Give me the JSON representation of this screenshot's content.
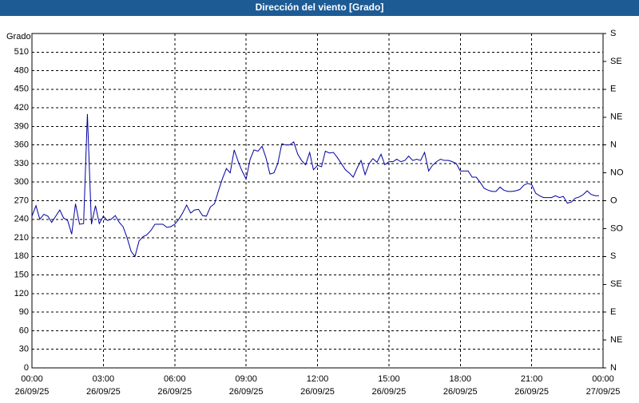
{
  "chart_data": {
    "type": "line",
    "title": "Dirección del viento [Grado]",
    "ylabel": "Grado",
    "xlim": [
      0,
      24
    ],
    "xticks": [
      {
        "value": 0,
        "label": "00:00"
      },
      {
        "value": 3,
        "label": "03:00"
      },
      {
        "value": 6,
        "label": "06:00"
      },
      {
        "value": 9,
        "label": "09:00"
      },
      {
        "value": 12,
        "label": "12:00"
      },
      {
        "value": 15,
        "label": "15:00"
      },
      {
        "value": 18,
        "label": "18:00"
      },
      {
        "value": 21,
        "label": "21:00"
      },
      {
        "value": 24,
        "label": "00:00"
      }
    ],
    "xtick_dates": [
      "26/09/25",
      "26/09/25",
      "26/09/25",
      "26/09/25",
      "26/09/25",
      "26/09/25",
      "26/09/25",
      "26/09/25",
      "27/09/25"
    ],
    "ylim": [
      0,
      540
    ],
    "yticks": [
      0,
      30,
      60,
      90,
      120,
      150,
      180,
      210,
      240,
      270,
      300,
      330,
      360,
      390,
      420,
      450,
      480,
      510
    ],
    "y2lim": [
      0,
      540
    ],
    "y2ticks": [
      {
        "value": 0,
        "label": "N"
      },
      {
        "value": 45,
        "label": "NE"
      },
      {
        "value": 90,
        "label": "E"
      },
      {
        "value": 135,
        "label": "SE"
      },
      {
        "value": 180,
        "label": "S"
      },
      {
        "value": 225,
        "label": "SO"
      },
      {
        "value": 270,
        "label": "O"
      },
      {
        "value": 315,
        "label": "NO"
      },
      {
        "value": 360,
        "label": "N"
      },
      {
        "value": 405,
        "label": "NE"
      },
      {
        "value": 450,
        "label": "E"
      },
      {
        "value": 495,
        "label": "SE"
      },
      {
        "value": 540,
        "label": "S"
      }
    ],
    "grid": true,
    "series": [
      {
        "color": "#0000a0",
        "x": [
          0,
          0.17,
          0.33,
          0.5,
          0.67,
          0.83,
          1,
          1.17,
          1.33,
          1.5,
          1.67,
          1.83,
          2,
          2.17,
          2.33,
          2.5,
          2.67,
          2.83,
          3,
          3.17,
          3.33,
          3.5,
          3.67,
          3.83,
          4,
          4.17,
          4.33,
          4.5,
          4.67,
          4.83,
          5,
          5.17,
          5.33,
          5.5,
          5.67,
          5.83,
          6,
          6.17,
          6.33,
          6.5,
          6.67,
          6.83,
          7,
          7.17,
          7.33,
          7.5,
          7.67,
          7.83,
          8,
          8.17,
          8.33,
          8.5,
          8.67,
          8.83,
          9,
          9.17,
          9.33,
          9.5,
          9.67,
          9.83,
          10,
          10.17,
          10.33,
          10.5,
          10.67,
          10.83,
          11,
          11.17,
          11.33,
          11.5,
          11.67,
          11.83,
          12,
          12.17,
          12.33,
          12.5,
          12.67,
          12.83,
          13,
          13.17,
          13.33,
          13.5,
          13.67,
          13.83,
          14,
          14.17,
          14.33,
          14.5,
          14.67,
          14.83,
          15,
          15.17,
          15.33,
          15.5,
          15.67,
          15.83,
          16,
          16.17,
          16.33,
          16.5,
          16.67,
          16.83,
          17,
          17.17,
          17.33,
          17.5,
          17.67,
          17.83,
          18,
          18.17,
          18.33,
          18.5,
          18.67,
          18.83,
          19,
          19.17,
          19.33,
          19.5,
          19.67,
          19.83,
          20,
          20.17,
          20.33,
          20.5,
          20.67,
          20.83,
          21,
          21.17,
          21.33,
          21.5,
          21.67,
          21.83,
          22,
          22.17,
          22.33,
          22.5,
          22.67,
          22.83,
          23,
          23.17,
          23.33,
          23.5,
          23.67,
          23.83
        ],
        "values": [
          245,
          262,
          240,
          248,
          245,
          235,
          245,
          255,
          242,
          238,
          216,
          265,
          232,
          233,
          410,
          232,
          262,
          233,
          245,
          238,
          240,
          246,
          235,
          228,
          210,
          188,
          180,
          205,
          212,
          215,
          222,
          232,
          232,
          232,
          227,
          228,
          232,
          240,
          250,
          263,
          250,
          255,
          256,
          246,
          245,
          260,
          265,
          285,
          305,
          322,
          315,
          352,
          333,
          318,
          305,
          337,
          352,
          350,
          358,
          340,
          313,
          315,
          330,
          362,
          360,
          360,
          365,
          345,
          335,
          328,
          348,
          320,
          327,
          325,
          350,
          347,
          348,
          340,
          330,
          320,
          315,
          308,
          323,
          335,
          312,
          330,
          338,
          332,
          345,
          328,
          333,
          333,
          337,
          333,
          335,
          342,
          335,
          337,
          335,
          348,
          318,
          327,
          333,
          337,
          335,
          335,
          333,
          330,
          318,
          318,
          318,
          308,
          308,
          300,
          290,
          287,
          285,
          285,
          292,
          287,
          285,
          285,
          286,
          288,
          295,
          298,
          296,
          282,
          278,
          275,
          275,
          275,
          278,
          275,
          277,
          266,
          268,
          274,
          276,
          280,
          286,
          280,
          278,
          278
        ]
      }
    ]
  }
}
